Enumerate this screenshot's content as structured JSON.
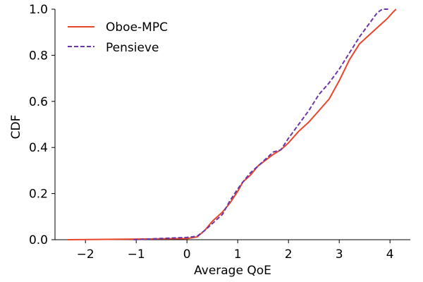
{
  "chart_data": {
    "type": "line",
    "xlabel": "Average QoE",
    "ylabel": "CDF",
    "xlim": [
      -2.6,
      4.4
    ],
    "ylim": [
      0,
      1.0
    ],
    "x_ticks": [
      -2,
      -1,
      0,
      1,
      2,
      3,
      4
    ],
    "x_tick_labels": [
      "−2",
      "−1",
      "0",
      "1",
      "2",
      "3",
      "4"
    ],
    "y_ticks": [
      0.0,
      0.2,
      0.4,
      0.6,
      0.8,
      1.0
    ],
    "y_tick_labels": [
      "0.0",
      "0.2",
      "0.4",
      "0.6",
      "0.8",
      "1.0"
    ],
    "grid": false,
    "legend_position": "top-left",
    "series": [
      {
        "name": "Oboe-MPC",
        "color": "#e8452a",
        "dash": "solid",
        "points": [
          [
            -2.35,
            0.0
          ],
          [
            0.0,
            0.005
          ],
          [
            0.2,
            0.012
          ],
          [
            0.35,
            0.04
          ],
          [
            0.5,
            0.08
          ],
          [
            0.7,
            0.12
          ],
          [
            0.85,
            0.16
          ],
          [
            1.0,
            0.21
          ],
          [
            1.1,
            0.25
          ],
          [
            1.25,
            0.28
          ],
          [
            1.4,
            0.32
          ],
          [
            1.55,
            0.345
          ],
          [
            1.7,
            0.37
          ],
          [
            1.85,
            0.39
          ],
          [
            2.0,
            0.42
          ],
          [
            2.2,
            0.47
          ],
          [
            2.4,
            0.51
          ],
          [
            2.6,
            0.56
          ],
          [
            2.8,
            0.61
          ],
          [
            3.0,
            0.69
          ],
          [
            3.2,
            0.78
          ],
          [
            3.4,
            0.85
          ],
          [
            3.6,
            0.89
          ],
          [
            3.8,
            0.93
          ],
          [
            3.95,
            0.96
          ],
          [
            4.05,
            0.985
          ],
          [
            4.12,
            1.0
          ]
        ]
      },
      {
        "name": "Pensieve",
        "color": "#6a37a8",
        "dash": "dashed",
        "points": [
          [
            -1.05,
            0.0
          ],
          [
            0.0,
            0.01
          ],
          [
            0.2,
            0.015
          ],
          [
            0.35,
            0.04
          ],
          [
            0.5,
            0.07
          ],
          [
            0.7,
            0.11
          ],
          [
            0.85,
            0.17
          ],
          [
            1.0,
            0.22
          ],
          [
            1.1,
            0.25
          ],
          [
            1.25,
            0.29
          ],
          [
            1.4,
            0.32
          ],
          [
            1.55,
            0.35
          ],
          [
            1.7,
            0.38
          ],
          [
            1.85,
            0.39
          ],
          [
            2.0,
            0.44
          ],
          [
            2.2,
            0.5
          ],
          [
            2.4,
            0.56
          ],
          [
            2.6,
            0.63
          ],
          [
            2.8,
            0.68
          ],
          [
            3.0,
            0.74
          ],
          [
            3.2,
            0.81
          ],
          [
            3.4,
            0.88
          ],
          [
            3.6,
            0.94
          ],
          [
            3.75,
            0.985
          ],
          [
            3.85,
            1.0
          ],
          [
            4.0,
            1.0
          ]
        ]
      }
    ]
  }
}
